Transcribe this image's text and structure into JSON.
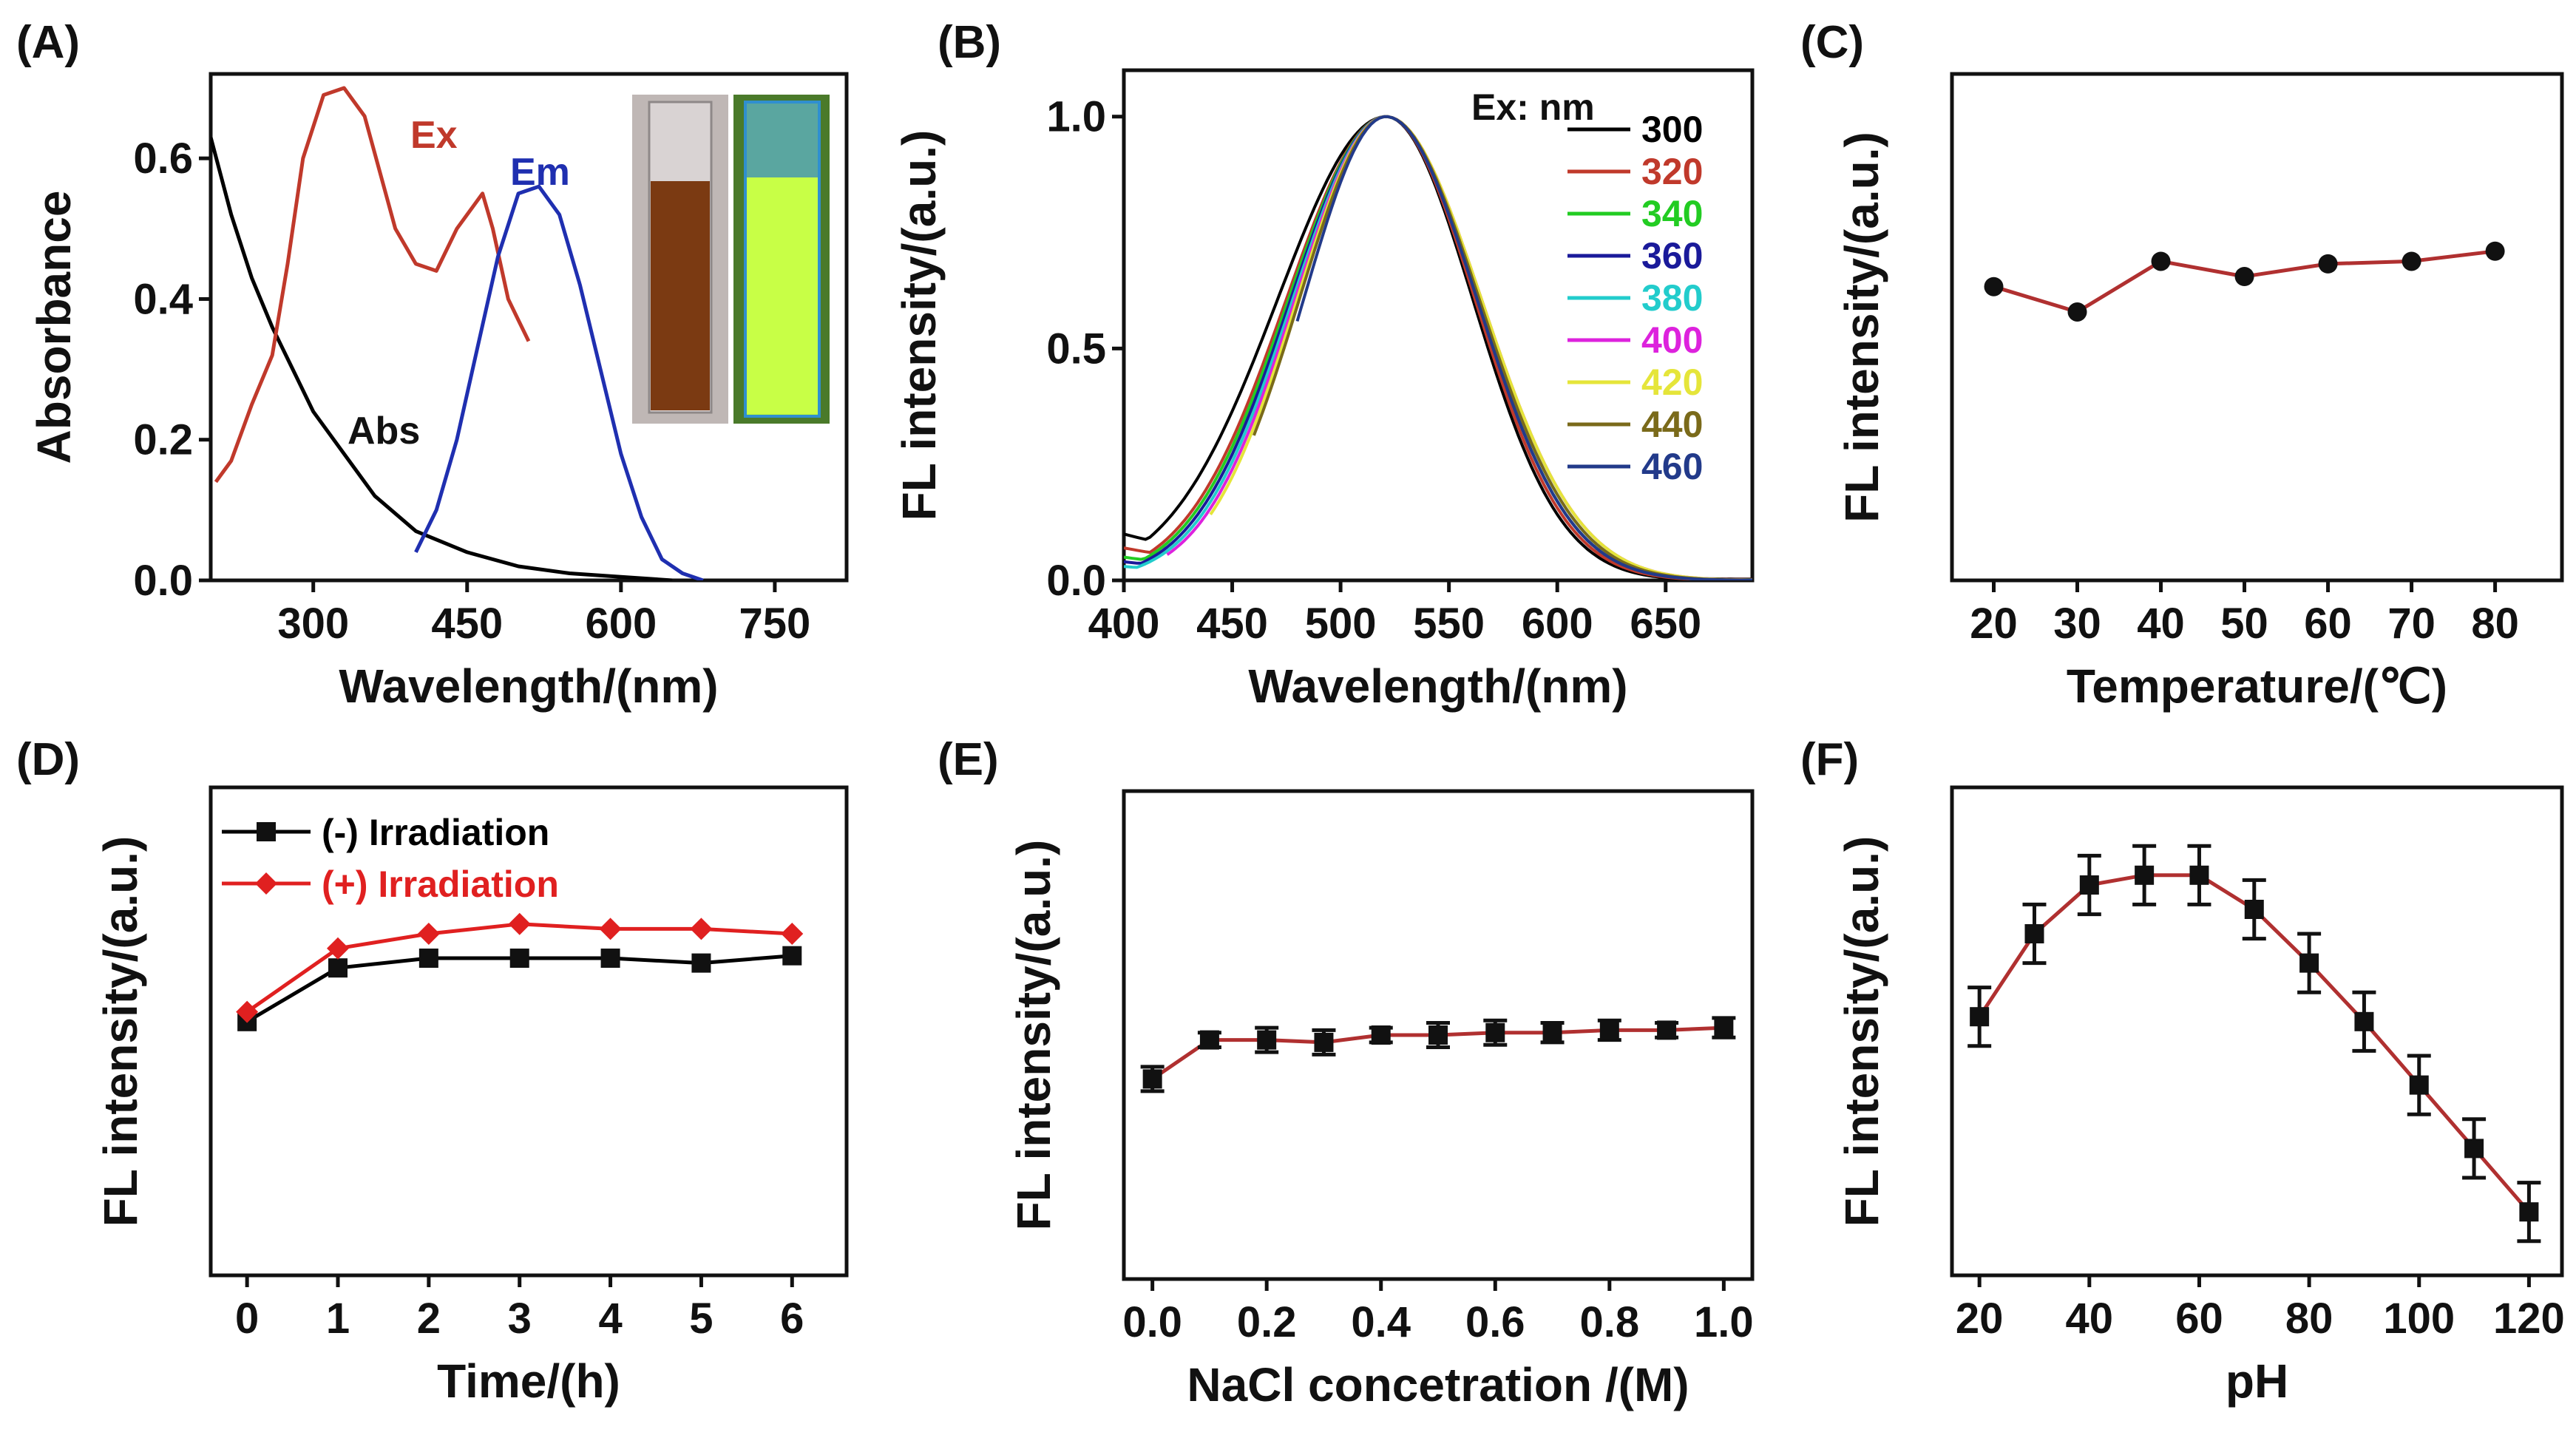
{
  "chart_data": [
    {
      "panel": "(A)",
      "type": "line",
      "xlabel": "Wavelength/(nm)",
      "ylabel": "Absorbance",
      "xlim": [
        200,
        820
      ],
      "ylim": [
        0,
        0.72
      ],
      "xticks": [
        300,
        450,
        600,
        750
      ],
      "yticks": [
        0.0,
        0.2,
        0.4,
        0.6
      ],
      "inset": "vial-photos",
      "series": [
        {
          "name": "Abs",
          "color": "#000000",
          "x": [
            200,
            220,
            240,
            260,
            280,
            300,
            330,
            360,
            400,
            450,
            500,
            550,
            600,
            650
          ],
          "y": [
            0.63,
            0.52,
            0.43,
            0.36,
            0.3,
            0.24,
            0.18,
            0.12,
            0.07,
            0.04,
            0.02,
            0.01,
            0.005,
            0.0
          ]
        },
        {
          "name": "Ex",
          "color": "#c0392b",
          "x": [
            205,
            220,
            240,
            260,
            275,
            290,
            310,
            330,
            350,
            365,
            380,
            400,
            420,
            440,
            455,
            465,
            475,
            490,
            500,
            510
          ],
          "y": [
            0.14,
            0.17,
            0.25,
            0.32,
            0.45,
            0.6,
            0.69,
            0.7,
            0.66,
            0.58,
            0.5,
            0.45,
            0.44,
            0.5,
            0.53,
            0.55,
            0.5,
            0.4,
            0.37,
            0.34
          ]
        },
        {
          "name": "Em",
          "color": "#1f2fb0",
          "x": [
            400,
            420,
            440,
            460,
            480,
            500,
            520,
            540,
            560,
            580,
            600,
            620,
            640,
            660,
            680
          ],
          "y": [
            0.04,
            0.1,
            0.2,
            0.33,
            0.46,
            0.55,
            0.56,
            0.52,
            0.42,
            0.3,
            0.18,
            0.09,
            0.03,
            0.01,
            0.0
          ]
        }
      ],
      "annotations": [
        {
          "text": "Ex",
          "color": "#c0392b"
        },
        {
          "text": "Em",
          "color": "#1f2fb0"
        },
        {
          "text": "Abs",
          "color": "#111111"
        }
      ]
    },
    {
      "panel": "(B)",
      "type": "line",
      "xlabel": "Wavelength/(nm)",
      "ylabel": "FL intensity/(a.u.)",
      "xlim": [
        400,
        690
      ],
      "ylim": [
        0,
        1.1
      ],
      "xticks": [
        400,
        450,
        500,
        550,
        600,
        650
      ],
      "yticks": [
        0.0,
        0.5,
        1.0
      ],
      "legend_title": "Ex: nm",
      "legend_position": "top-right",
      "series": [
        {
          "name": "300",
          "color": "#000000",
          "start": 400,
          "width_left": 50,
          "width_right": 40,
          "base": 0.1
        },
        {
          "name": "320",
          "color": "#c0392b",
          "start": 400,
          "width_left": 46,
          "width_right": 41,
          "base": 0.07
        },
        {
          "name": "340",
          "color": "#22cc22",
          "start": 400,
          "width_left": 45,
          "width_right": 42,
          "base": 0.05
        },
        {
          "name": "360",
          "color": "#1a1a9a",
          "start": 400,
          "width_left": 44,
          "width_right": 42,
          "base": 0.04
        },
        {
          "name": "380",
          "color": "#22cccc",
          "start": 400,
          "width_left": 43,
          "width_right": 43,
          "base": 0.03
        },
        {
          "name": "400",
          "color": "#dd22dd",
          "start": 420,
          "width_left": 42,
          "width_right": 44,
          "base": 0.0
        },
        {
          "name": "420",
          "color": "#e5e53a",
          "start": 440,
          "width_left": 41,
          "width_right": 44,
          "base": 0.0
        },
        {
          "name": "440",
          "color": "#7a6a1a",
          "start": 460,
          "width_left": 40,
          "width_right": 43,
          "base": 0.0
        },
        {
          "name": "460",
          "color": "#223a8a",
          "start": 480,
          "width_left": 38,
          "width_right": 42,
          "base": 0.0
        }
      ]
    },
    {
      "panel": "(C)",
      "type": "line",
      "xlabel": "Temperature/(℃)",
      "ylabel": "FL intensity/(a.u.)",
      "xlim": [
        15,
        88
      ],
      "ylim": [
        0,
        1
      ],
      "xticks": [
        20,
        30,
        40,
        50,
        60,
        70,
        80
      ],
      "series": [
        {
          "name": "FL",
          "color": "#b03030",
          "x": [
            20,
            30,
            40,
            50,
            60,
            70,
            80
          ],
          "y": [
            0.58,
            0.53,
            0.63,
            0.6,
            0.625,
            0.63,
            0.65
          ]
        }
      ]
    },
    {
      "panel": "(D)",
      "type": "line",
      "xlabel": "Time/(h)",
      "ylabel": "FL intensity/(a.u.)",
      "xlim": [
        -0.4,
        6.6
      ],
      "ylim": [
        0,
        1
      ],
      "xticks": [
        0,
        1,
        2,
        3,
        4,
        5,
        6
      ],
      "legend_position": "top-left",
      "series": [
        {
          "name": "(-) Irradiation",
          "color": "#000000",
          "marker": "square",
          "x": [
            0,
            1,
            2,
            3,
            4,
            5,
            6
          ],
          "y": [
            0.52,
            0.63,
            0.65,
            0.65,
            0.65,
            0.64,
            0.655
          ]
        },
        {
          "name": "(+) Irradiation",
          "color": "#e02020",
          "marker": "diamond",
          "x": [
            0,
            1,
            2,
            3,
            4,
            5,
            6
          ],
          "y": [
            0.54,
            0.67,
            0.7,
            0.72,
            0.71,
            0.71,
            0.7
          ]
        }
      ]
    },
    {
      "panel": "(E)",
      "type": "line",
      "xlabel": "NaCl concetration /(M)",
      "ylabel": "FL intensity/(a.u.)",
      "xlim": [
        -0.05,
        1.05
      ],
      "ylim": [
        0,
        1
      ],
      "xticks": [
        0.0,
        0.2,
        0.4,
        0.6,
        0.8,
        1.0
      ],
      "series": [
        {
          "name": "FL",
          "color": "#b03030",
          "marker": "square",
          "x": [
            0,
            0.1,
            0.2,
            0.3,
            0.4,
            0.5,
            0.6,
            0.7,
            0.8,
            0.9,
            1.0
          ],
          "y": [
            0.41,
            0.49,
            0.49,
            0.485,
            0.5,
            0.5,
            0.505,
            0.505,
            0.51,
            0.51,
            0.515
          ],
          "err": [
            0.025,
            0.015,
            0.025,
            0.025,
            0.015,
            0.025,
            0.025,
            0.02,
            0.02,
            0.015,
            0.02
          ]
        }
      ]
    },
    {
      "panel": "(F)",
      "type": "line",
      "xlabel": "pH",
      "ylabel": "FL intensity/(a.u.)",
      "xlim": [
        15,
        126
      ],
      "ylim": [
        0,
        1
      ],
      "xticks": [
        20,
        40,
        60,
        80,
        100,
        120
      ],
      "series": [
        {
          "name": "FL",
          "color": "#b03030",
          "marker": "square",
          "x": [
            20,
            30,
            40,
            50,
            60,
            70,
            80,
            90,
            100,
            110,
            120
          ],
          "y": [
            0.53,
            0.7,
            0.8,
            0.82,
            0.82,
            0.75,
            0.64,
            0.52,
            0.39,
            0.26,
            0.13
          ],
          "err": [
            0.06,
            0.06,
            0.06,
            0.06,
            0.06,
            0.06,
            0.06,
            0.06,
            0.06,
            0.06,
            0.06
          ]
        }
      ]
    }
  ]
}
